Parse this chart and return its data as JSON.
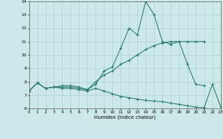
{
  "line1_x": [
    0,
    1,
    2,
    3,
    4,
    5,
    6,
    7,
    8,
    9,
    10,
    11,
    12,
    13,
    14,
    15,
    16,
    17,
    18,
    19,
    20,
    21
  ],
  "line1_y": [
    7.3,
    7.9,
    7.5,
    7.6,
    7.7,
    7.7,
    7.6,
    7.4,
    7.8,
    8.8,
    9.1,
    10.5,
    12.0,
    11.5,
    14.0,
    13.0,
    11.0,
    10.8,
    11.0,
    9.3,
    7.8,
    7.7
  ],
  "line2_x": [
    0,
    1,
    2,
    3,
    4,
    5,
    6,
    7,
    8,
    9,
    10,
    11,
    12,
    13,
    14,
    15,
    16,
    17,
    18,
    19,
    20,
    21
  ],
  "line2_y": [
    7.3,
    7.9,
    7.5,
    7.6,
    7.6,
    7.6,
    7.5,
    7.4,
    8.0,
    8.5,
    8.8,
    9.3,
    9.6,
    10.0,
    10.4,
    10.7,
    10.9,
    11.0,
    11.0,
    11.0,
    11.0,
    11.0
  ],
  "line3_x": [
    0,
    1,
    2,
    3,
    4,
    5,
    6,
    7,
    8,
    9,
    10,
    11,
    12,
    13,
    14,
    15,
    16,
    17,
    18,
    19,
    20,
    21,
    22,
    23
  ],
  "line3_y": [
    7.3,
    7.9,
    7.5,
    7.6,
    7.5,
    7.5,
    7.4,
    7.3,
    7.5,
    7.3,
    7.1,
    6.9,
    6.8,
    6.7,
    6.6,
    6.55,
    6.5,
    6.4,
    6.3,
    6.2,
    6.1,
    6.05,
    7.8,
    6.1
  ],
  "line_color": "#2a7a6a",
  "bg_color": "#cce8e8",
  "grid_color": "#aad0d0",
  "xlabel": "Humidex (Indice chaleur)",
  "xlim": [
    0,
    23
  ],
  "ylim": [
    6,
    14
  ],
  "yticks": [
    6,
    7,
    8,
    9,
    10,
    11,
    12,
    13,
    14
  ],
  "xticks": [
    0,
    1,
    2,
    3,
    4,
    5,
    6,
    7,
    8,
    9,
    10,
    11,
    12,
    13,
    14,
    15,
    16,
    17,
    18,
    19,
    20,
    21,
    22,
    23
  ]
}
